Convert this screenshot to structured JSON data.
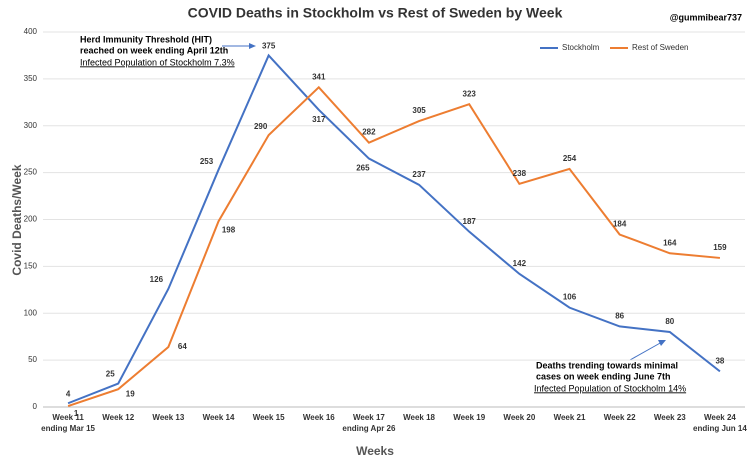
{
  "chart_data": {
    "type": "line",
    "title": "COVID Deaths in Stockholm vs Rest of Sweden by Week",
    "handle": "@gummibear737",
    "x_label": "Weeks",
    "y_label": "Covid Deaths/Week",
    "categories": [
      "Week 11",
      "Week 12",
      "Week 13",
      "Week 14",
      "Week 15",
      "Week 16",
      "Week 17",
      "Week 18",
      "Week 19",
      "Week 20",
      "Week 21",
      "Week 22",
      "Week 23",
      "Week 24"
    ],
    "category_sublabels": [
      "ending Mar 15",
      null,
      null,
      null,
      null,
      null,
      "ending Apr 26",
      null,
      null,
      null,
      null,
      null,
      null,
      "ending Jun 14"
    ],
    "series": [
      {
        "name": "Stockholm",
        "color": "#4472c4",
        "values": [
          4,
          25,
          126,
          253,
          375,
          317,
          265,
          237,
          187,
          142,
          106,
          86,
          80,
          38
        ]
      },
      {
        "name": "Rest of Sweden",
        "color": "#ed7d31",
        "values": [
          1,
          19,
          64,
          198,
          290,
          341,
          282,
          305,
          323,
          238,
          254,
          184,
          164,
          159
        ]
      }
    ],
    "ylim": [
      0,
      400
    ],
    "yticks": [
      0,
      50,
      100,
      150,
      200,
      250,
      300,
      350,
      400
    ],
    "grid": true,
    "legend": "top-right",
    "annotations": [
      [
        "Herd Immunity Threshold (HIT)",
        "reached on week ending April 12th",
        "Infected Population of Stockholm 7.3%"
      ],
      [
        "Deaths trending towards minimal",
        "cases on week ending June 7th",
        "Infected Population of Stockholm 14%"
      ]
    ]
  }
}
